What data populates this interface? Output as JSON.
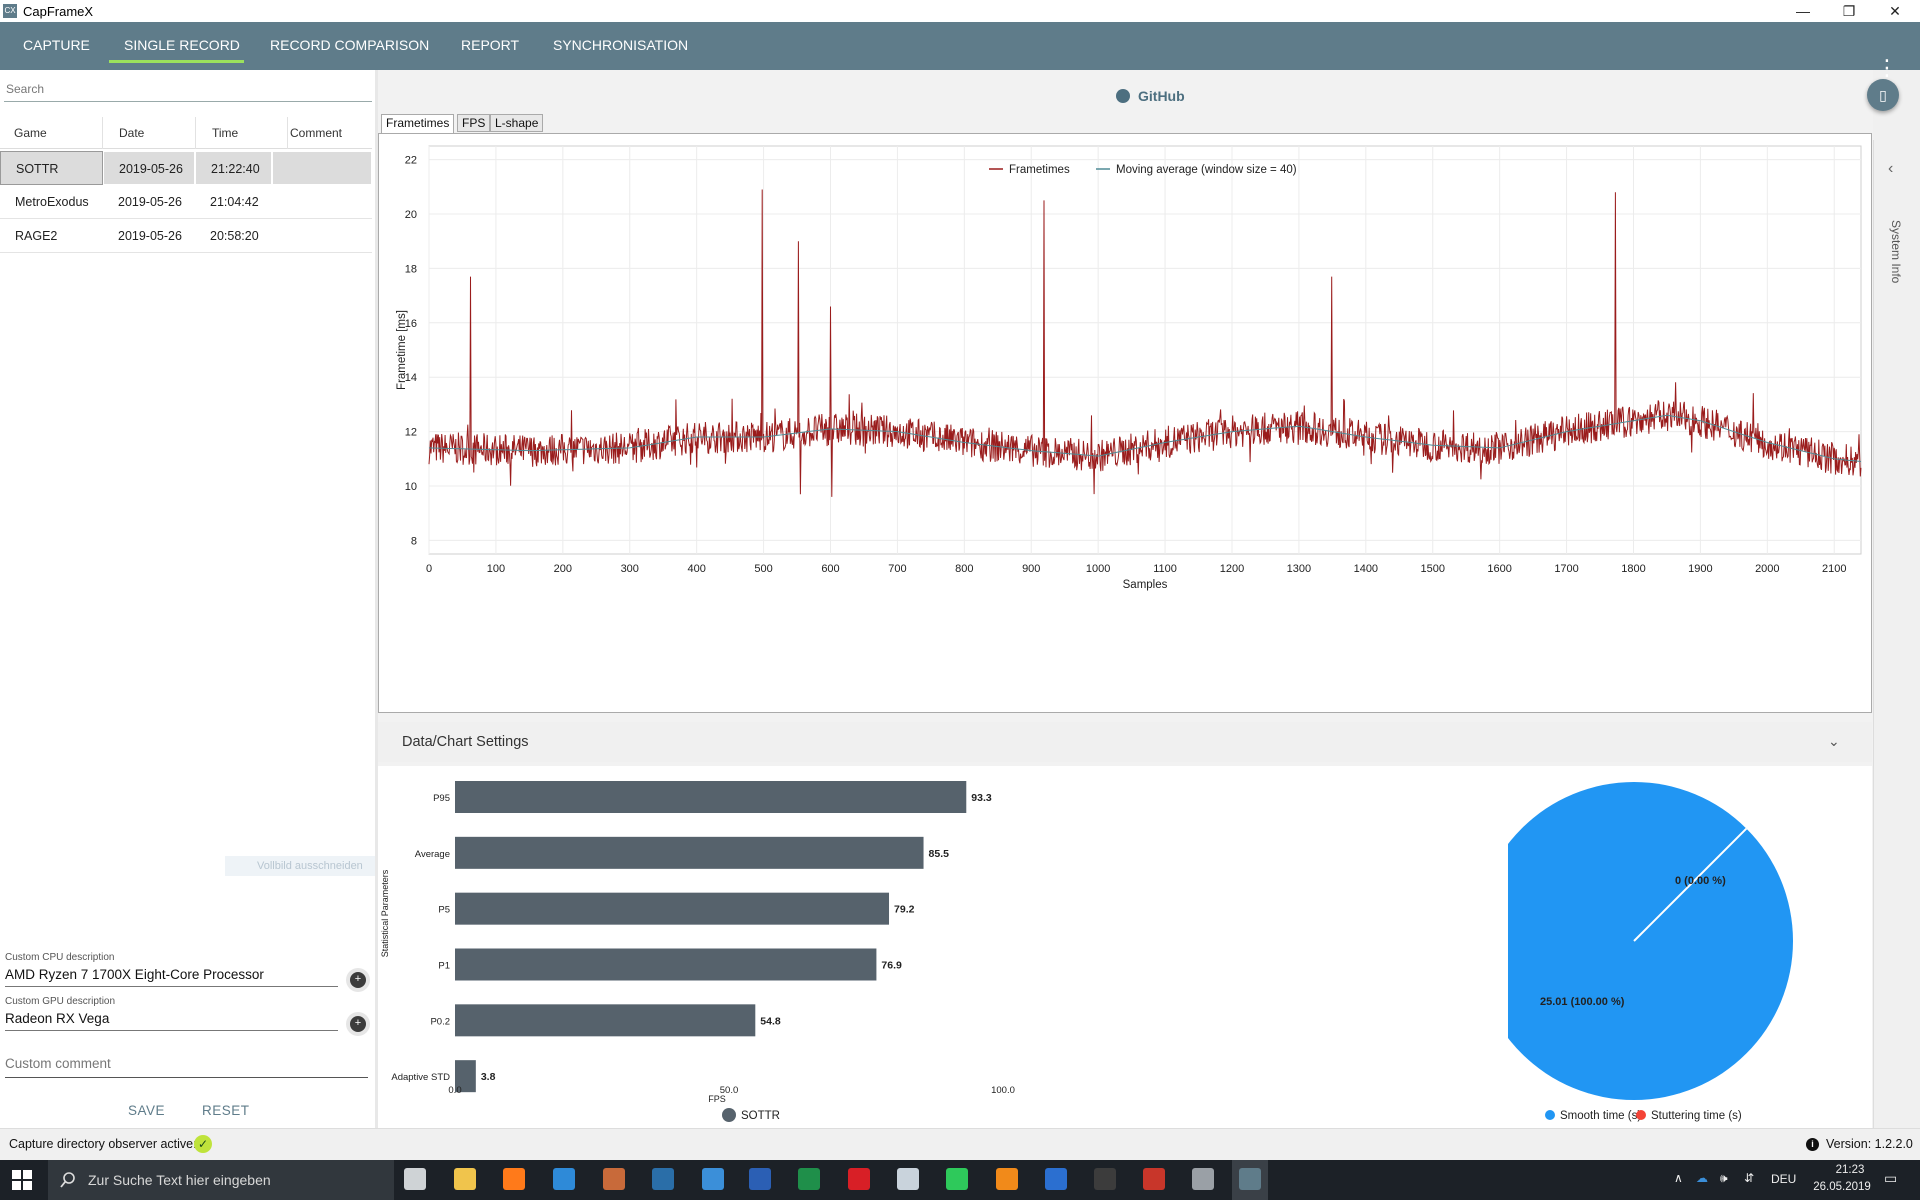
{
  "window": {
    "app_icon": "CX",
    "title": "CapFrameX",
    "minimize": "—",
    "maximize": "❐",
    "close": "✕"
  },
  "nav": {
    "tabs": [
      {
        "label": "CAPTURE"
      },
      {
        "label": "SINGLE RECORD"
      },
      {
        "label": "RECORD COMPARISON"
      },
      {
        "label": "REPORT"
      },
      {
        "label": "SYNCHRONISATION"
      }
    ],
    "active_tab": "SINGLE RECORD",
    "menu_icon": "⋮"
  },
  "left": {
    "search_placeholder": "Search",
    "columns": [
      "Game",
      "Date",
      "Time",
      "Comment"
    ],
    "rows": [
      {
        "game": "SOTTR",
        "date": "2019-05-26",
        "time": "21:22:40",
        "comment": ""
      },
      {
        "game": "MetroExodus",
        "date": "2019-05-26",
        "time": "21:04:42",
        "comment": ""
      },
      {
        "game": "RAGE2",
        "date": "2019-05-26",
        "time": "20:58:20",
        "comment": ""
      }
    ],
    "cpu_label": "Custom CPU description",
    "cpu_value": "AMD Ryzen 7 1700X Eight-Core Processor",
    "gpu_label": "Custom GPU description",
    "gpu_value": "Radeon RX Vega",
    "comment_placeholder": "Custom comment",
    "save": "SAVE",
    "reset": "RESET",
    "plus": "+",
    "ghost_text": "Vollbild ausschneiden"
  },
  "main": {
    "github": "GitHub",
    "phone_icon": "▯",
    "subtabs": [
      "Frametimes",
      "FPS",
      "L-shape"
    ],
    "settings_title": "Data/Chart Settings",
    "settings_chevron": "⌄"
  },
  "sidebar": {
    "label": "System Info",
    "chevron": "‹"
  },
  "status": {
    "observer": "Capture directory observer active:",
    "check": "✓",
    "version": "Version:  1.2.2.0",
    "info_icon": "i"
  },
  "taskbar": {
    "search_placeholder": "Zur Suche Text hier eingeben",
    "lang": "DEU",
    "time": "21:23",
    "date": "26.05.2019",
    "icons": [
      {
        "name": "task-view-icon",
        "color": "#cfd3d6"
      },
      {
        "name": "file-explorer-icon",
        "color": "#f0c44c"
      },
      {
        "name": "firefox-icon",
        "color": "#ff7a1a"
      },
      {
        "name": "calculator-icon",
        "color": "#2e8ad8"
      },
      {
        "name": "game-icon",
        "color": "#c86a3a"
      },
      {
        "name": "steam-icon",
        "color": "#2a6ea8"
      },
      {
        "name": "thunderbird-icon",
        "color": "#3b8fd9"
      },
      {
        "name": "word-icon",
        "color": "#2b5fb4"
      },
      {
        "name": "excel-icon",
        "color": "#1f8f4a"
      },
      {
        "name": "netflix-icon",
        "color": "#d81f26"
      },
      {
        "name": "document-icon",
        "color": "#c9d3dc"
      },
      {
        "name": "whatsapp-icon",
        "color": "#2ec95b"
      },
      {
        "name": "vlc-icon",
        "color": "#f18a1a"
      },
      {
        "name": "audio-icon",
        "color": "#2b6fd0"
      },
      {
        "name": "terminal-icon",
        "color": "#3c3c3c"
      },
      {
        "name": "amd-icon",
        "color": "#c8362a"
      },
      {
        "name": "settings-gear-icon",
        "color": "#9aa0a6"
      },
      {
        "name": "capframex-icon",
        "color": "#5f7c8a"
      }
    ]
  },
  "chart_data": [
    {
      "type": "line",
      "title": "",
      "xlabel": "Samples",
      "ylabel": "Frametime [ms]",
      "xlim": [
        0,
        2140
      ],
      "ylim": [
        7.5,
        22.5
      ],
      "xticks": [
        0,
        100,
        200,
        300,
        400,
        500,
        600,
        700,
        800,
        900,
        1000,
        1100,
        1200,
        1300,
        1400,
        1500,
        1600,
        1700,
        1800,
        1900,
        2000,
        2100
      ],
      "yticks": [
        8,
        10,
        12,
        14,
        16,
        18,
        20,
        22
      ],
      "grid": true,
      "legend": "top-center",
      "series": [
        {
          "name": "Frametimes",
          "color": "#9a1c1c",
          "baseline": [
            [
              0,
              11.4
            ],
            [
              150,
              11.3
            ],
            [
              300,
              11.4
            ],
            [
              400,
              11.8
            ],
            [
              500,
              11.8
            ],
            [
              600,
              12.1
            ],
            [
              700,
              12.0
            ],
            [
              800,
              11.6
            ],
            [
              900,
              11.3
            ],
            [
              1000,
              11.1
            ],
            [
              1100,
              11.6
            ],
            [
              1200,
              12.0
            ],
            [
              1300,
              12.2
            ],
            [
              1400,
              11.8
            ],
            [
              1500,
              11.5
            ],
            [
              1600,
              11.4
            ],
            [
              1700,
              12.0
            ],
            [
              1800,
              12.4
            ],
            [
              1850,
              12.6
            ],
            [
              1900,
              12.4
            ],
            [
              2000,
              11.6
            ],
            [
              2100,
              11.0
            ],
            [
              2140,
              10.9
            ]
          ],
          "spikes": [
            [
              62,
              17.7
            ],
            [
              498,
              20.9
            ],
            [
              552,
              19.0
            ],
            [
              555,
              9.7
            ],
            [
              600,
              16.6
            ],
            [
              602,
              9.6
            ],
            [
              919,
              20.5
            ],
            [
              1349,
              17.7
            ],
            [
              1773,
              20.8
            ]
          ]
        },
        {
          "name": "Moving average (window size = 40)",
          "color": "#4f8b96"
        }
      ]
    },
    {
      "type": "bar",
      "orientation": "horizontal",
      "xlabel": "FPS",
      "ylabel": "Statistical Parameters",
      "xlim": [
        0,
        100
      ],
      "xticks": [
        "0.0",
        "50.0",
        "100.0"
      ],
      "categories": [
        "P95",
        "Average",
        "P5",
        "P1",
        "P0.2",
        "Adaptive STD"
      ],
      "values": [
        93.3,
        85.5,
        79.2,
        76.9,
        54.8,
        3.8
      ],
      "series_name": "SOTTR",
      "color": "#56626c"
    },
    {
      "type": "pie",
      "slices": [
        {
          "name": "Smooth time (s)",
          "value": 25.01,
          "label": "25.01 (100.00 %)",
          "color": "#2196f3"
        },
        {
          "name": "Stuttering time (s)",
          "value": 0,
          "label": "0 (0.00 %)",
          "color": "#f44336"
        }
      ],
      "legend": "bottom"
    }
  ]
}
